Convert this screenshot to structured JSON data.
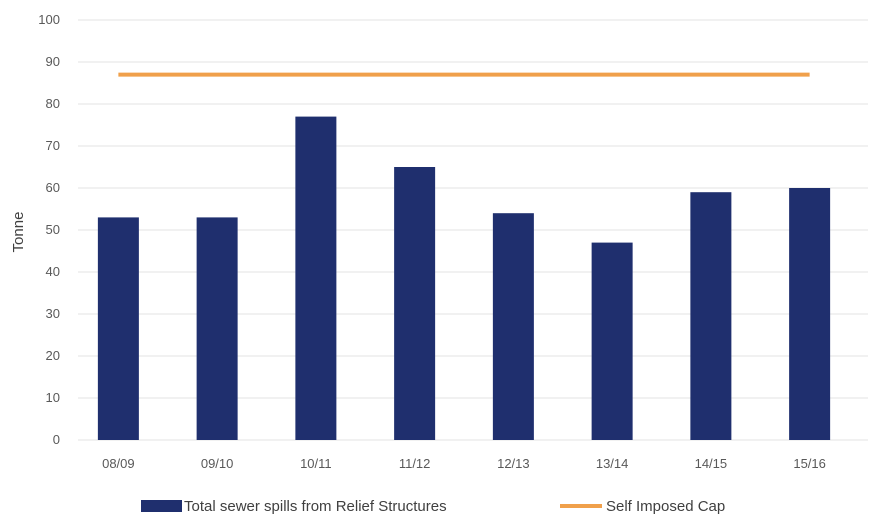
{
  "chart_data": {
    "type": "bar",
    "title": "",
    "xlabel": "",
    "ylabel": "Tonne",
    "ylim": [
      0,
      100
    ],
    "yticks": [
      0,
      10,
      20,
      30,
      40,
      50,
      60,
      70,
      80,
      90,
      100
    ],
    "grid": true,
    "legend_position": "bottom",
    "categories": [
      "08/09",
      "09/10",
      "10/11",
      "11/12",
      "12/13",
      "13/14",
      "14/15",
      "15/16"
    ],
    "series": [
      {
        "name": "Total sewer spills from Relief Structures",
        "type": "bar",
        "color": "#1f2f6e",
        "values": [
          53,
          53,
          77,
          65,
          54,
          47,
          59,
          60
        ]
      },
      {
        "name": "Self Imposed Cap",
        "type": "line",
        "color": "#f0a04b",
        "values": [
          87,
          87,
          87,
          87,
          87,
          87,
          87,
          87
        ]
      }
    ]
  }
}
